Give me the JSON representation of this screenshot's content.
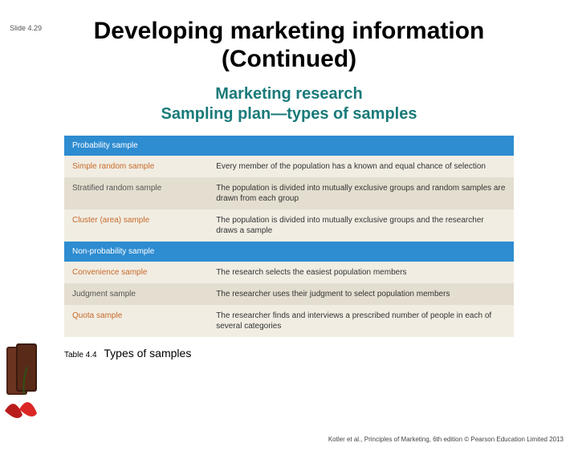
{
  "slide_number": "Slide 4.29",
  "title_line1": "Developing marketing information",
  "title_line2": "(Continued)",
  "subtitle_line1": "Marketing research",
  "subtitle_line2": "Sampling plan—types of samples",
  "subtitle_color": "#1a7a7a",
  "table": {
    "header_bg": "#2e8cd1",
    "row_odd_bg": "#f1ede3",
    "row_even_bg": "#e4ded0",
    "row_odd_text": "#c76a2a",
    "row_even_text": "#555555",
    "sections": [
      {
        "header": "Probability sample",
        "rows": [
          {
            "left": "Simple random sample",
            "right": "Every member of the population has a known and equal chance of selection"
          },
          {
            "left": "Stratified random sample",
            "right": "The population is divided into mutually exclusive groups and random samples are drawn from each group"
          },
          {
            "left": "Cluster (area) sample",
            "right": "The population is divided into mutually exclusive groups and the researcher draws a sample"
          }
        ]
      },
      {
        "header": "Non-probability sample",
        "rows": [
          {
            "left": "Convenience sample",
            "right": "The research selects the easiest population members"
          },
          {
            "left": "Judgment sample",
            "right": "The researcher uses their judgment to select population members"
          },
          {
            "left": "Quota sample",
            "right": "The researcher finds and interviews a prescribed number of people in each of several categories"
          }
        ]
      }
    ]
  },
  "caption_small": "Table 4.4",
  "caption_big": "Types of samples",
  "footer": "Kotler et al., Principles of Marketing, 6th edition © Pearson Education Limited 2013"
}
